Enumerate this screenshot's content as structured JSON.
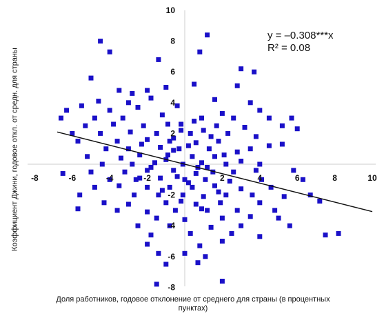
{
  "chart_data": {
    "type": "scatter",
    "title": "",
    "xlabel": "Доля работников, годовое отклонение от среднего для страны (в процентных пунктах)",
    "ylabel": "Коэффициент Джини, годовое откл. от средн. для страны",
    "xlim": [
      -8,
      10
    ],
    "ylim": [
      -8,
      10
    ],
    "xticks": [
      "-8",
      "-6",
      "-4",
      "-2",
      "2",
      "4",
      "6",
      "8",
      "10"
    ],
    "yticks": [
      "-8",
      "-6",
      "-4",
      "-2",
      "2",
      "4",
      "6",
      "8",
      "10"
    ],
    "grid": false,
    "marker_color": "#1a10c8",
    "trendline": {
      "slope": -0.308,
      "intercept": 0,
      "color": "#111111"
    },
    "annotations": {
      "equation": "y = –0.308***x",
      "r2": "R² = 0.08"
    },
    "points": [
      [
        -4.5,
        8.0
      ],
      [
        -4.0,
        7.3
      ],
      [
        1.2,
        8.4
      ],
      [
        0.8,
        7.3
      ],
      [
        -1.4,
        6.8
      ],
      [
        3.0,
        6.2
      ],
      [
        3.7,
        6.0
      ],
      [
        -5.0,
        5.6
      ],
      [
        2.8,
        5.1
      ],
      [
        -3.5,
        4.8
      ],
      [
        -2.0,
        4.8
      ],
      [
        -1.0,
        5.0
      ],
      [
        0.5,
        5.2
      ],
      [
        -2.8,
        4.6
      ],
      [
        -4.6,
        4.1
      ],
      [
        -3.0,
        4.0
      ],
      [
        -1.8,
        4.3
      ],
      [
        1.6,
        4.2
      ],
      [
        3.5,
        4.0
      ],
      [
        -5.5,
        3.8
      ],
      [
        -6.3,
        3.5
      ],
      [
        -4.0,
        3.5
      ],
      [
        -2.5,
        3.7
      ],
      [
        -0.4,
        3.8
      ],
      [
        2.0,
        3.3
      ],
      [
        4.0,
        3.5
      ],
      [
        -6.6,
        3.0
      ],
      [
        -4.8,
        3.0
      ],
      [
        -3.3,
        3.0
      ],
      [
        -1.2,
        3.2
      ],
      [
        0.9,
        3.0
      ],
      [
        2.6,
        3.0
      ],
      [
        4.5,
        3.0
      ],
      [
        5.7,
        3.0
      ],
      [
        -5.3,
        2.5
      ],
      [
        -3.8,
        2.6
      ],
      [
        -2.2,
        2.5
      ],
      [
        -0.2,
        2.6
      ],
      [
        1.7,
        2.5
      ],
      [
        3.2,
        2.4
      ],
      [
        5.2,
        2.5
      ],
      [
        6.0,
        2.3
      ],
      [
        -6.0,
        2.0
      ],
      [
        -4.5,
        2.0
      ],
      [
        -2.9,
        2.1
      ],
      [
        -1.5,
        2.0
      ],
      [
        0.3,
        2.0
      ],
      [
        1.0,
        2.2
      ],
      [
        2.3,
        2.0
      ],
      [
        3.8,
        1.8
      ],
      [
        -5.7,
        1.5
      ],
      [
        -3.6,
        1.5
      ],
      [
        -2.0,
        1.6
      ],
      [
        -0.8,
        1.5
      ],
      [
        0.6,
        1.4
      ],
      [
        1.8,
        1.5
      ],
      [
        4.5,
        1.2
      ],
      [
        5.2,
        1.3
      ],
      [
        -4.2,
        1.0
      ],
      [
        -3.0,
        1.0
      ],
      [
        -1.3,
        1.1
      ],
      [
        -0.3,
        1.0
      ],
      [
        1.3,
        1.0
      ],
      [
        2.8,
        0.8
      ],
      [
        3.5,
        1.0
      ],
      [
        -5.2,
        0.5
      ],
      [
        -3.4,
        0.4
      ],
      [
        -2.4,
        0.6
      ],
      [
        -0.9,
        0.6
      ],
      [
        0.4,
        0.5
      ],
      [
        1.6,
        0.5
      ],
      [
        3.0,
        0.2
      ],
      [
        -4.4,
        0.0
      ],
      [
        -2.8,
        0.0
      ],
      [
        -1.6,
        0.1
      ],
      [
        -0.1,
        0.0
      ],
      [
        0.9,
        0.1
      ],
      [
        2.2,
        0.0
      ],
      [
        4.0,
        0.0
      ],
      [
        -6.5,
        -0.6
      ],
      [
        -5.0,
        -0.5
      ],
      [
        -3.2,
        -0.5
      ],
      [
        -2.0,
        -0.4
      ],
      [
        -0.6,
        -0.4
      ],
      [
        0.6,
        -0.6
      ],
      [
        1.5,
        -0.5
      ],
      [
        2.6,
        -0.5
      ],
      [
        3.8,
        -0.4
      ],
      [
        5.8,
        -0.4
      ],
      [
        -4.0,
        -1.0
      ],
      [
        -2.6,
        -1.0
      ],
      [
        -1.3,
        -0.9
      ],
      [
        0.0,
        -1.0
      ],
      [
        1.1,
        -1.0
      ],
      [
        2.4,
        -1.1
      ],
      [
        4.1,
        -1.0
      ],
      [
        6.3,
        -1.0
      ],
      [
        -4.8,
        -1.5
      ],
      [
        -3.5,
        -1.4
      ],
      [
        -2.0,
        -1.5
      ],
      [
        -0.8,
        -1.5
      ],
      [
        0.4,
        -1.5
      ],
      [
        1.6,
        -1.4
      ],
      [
        3.0,
        -1.6
      ],
      [
        4.6,
        -1.5
      ],
      [
        -5.6,
        -2.0
      ],
      [
        -2.7,
        -2.0
      ],
      [
        -1.4,
        -2.0
      ],
      [
        -0.1,
        -2.0
      ],
      [
        1.0,
        -2.1
      ],
      [
        2.2,
        -2.0
      ],
      [
        3.6,
        -2.0
      ],
      [
        5.3,
        -2.1
      ],
      [
        6.7,
        -2.0
      ],
      [
        -4.3,
        -2.5
      ],
      [
        -3.0,
        -2.6
      ],
      [
        -1.0,
        -2.5
      ],
      [
        0.6,
        -2.6
      ],
      [
        1.9,
        -2.5
      ],
      [
        4.0,
        -2.5
      ],
      [
        7.2,
        -2.4
      ],
      [
        -5.7,
        -2.9
      ],
      [
        -3.6,
        -3.0
      ],
      [
        -2.0,
        -3.1
      ],
      [
        -0.5,
        -3.0
      ],
      [
        1.2,
        -3.0
      ],
      [
        2.8,
        -3.0
      ],
      [
        4.8,
        -3.0
      ],
      [
        -1.5,
        -3.5
      ],
      [
        0.0,
        -3.6
      ],
      [
        2.0,
        -3.5
      ],
      [
        3.5,
        -3.4
      ],
      [
        5.0,
        -3.5
      ],
      [
        -2.5,
        -4.0
      ],
      [
        -0.8,
        -4.0
      ],
      [
        1.4,
        -4.1
      ],
      [
        3.0,
        -4.0
      ],
      [
        5.6,
        -4.0
      ],
      [
        -1.8,
        -4.6
      ],
      [
        0.3,
        -4.5
      ],
      [
        2.5,
        -4.5
      ],
      [
        4.0,
        -4.7
      ],
      [
        7.5,
        -4.6
      ],
      [
        8.2,
        -4.5
      ],
      [
        -2.0,
        -5.2
      ],
      [
        0.8,
        -5.3
      ],
      [
        2.0,
        -5.0
      ],
      [
        -1.4,
        -5.8
      ],
      [
        0.0,
        -5.8
      ],
      [
        1.1,
        -6.0
      ],
      [
        -1.0,
        -6.5
      ],
      [
        0.7,
        -6.4
      ],
      [
        -1.5,
        -7.8
      ],
      [
        2.0,
        -7.6
      ],
      [
        -0.6,
        1.7
      ],
      [
        -0.2,
        2.2
      ],
      [
        0.2,
        1.2
      ],
      [
        -1.0,
        0.3
      ],
      [
        0.7,
        -0.2
      ],
      [
        -0.4,
        -0.8
      ],
      [
        0.2,
        -1.2
      ],
      [
        -1.8,
        -0.2
      ],
      [
        1.2,
        -0.2
      ],
      [
        -0.9,
        2.6
      ],
      [
        0.5,
        2.8
      ],
      [
        -2.3,
        1.3
      ],
      [
        1.4,
        1.8
      ],
      [
        -0.2,
        -2.4
      ],
      [
        0.9,
        -2.9
      ],
      [
        -1.2,
        -1.7
      ],
      [
        2.1,
        0.6
      ],
      [
        -2.4,
        -0.9
      ],
      [
        1.8,
        -1.8
      ],
      [
        -0.6,
        0.9
      ]
    ]
  }
}
